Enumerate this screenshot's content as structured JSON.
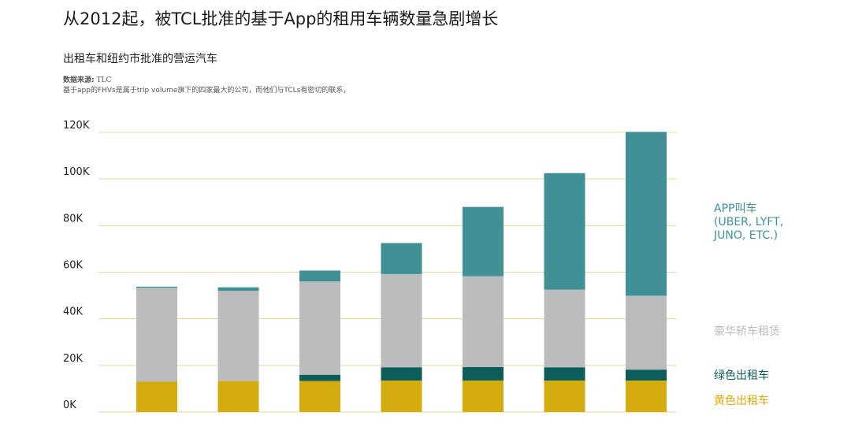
{
  "title": "从2012起，被TCL批准的基于App的租用车辆数量急剧增长",
  "subtitle": "出租车和纽约市批准的营运汽车",
  "source_label": "数据来源:",
  "source_value": "TLC",
  "note": "基于app的FHVs是属于trip volume旗下的四家最大的公司，而他们与TCLs有密切的联系，",
  "colors": {
    "yellow_taxi": "#d4ac0d",
    "green_taxi": "#0d5e5a",
    "luxury": "#bbbcbe",
    "app": "#3f9196",
    "grid": "#e2d99a"
  },
  "legend": {
    "app": [
      "APP叫车",
      "(UBER, LYFT,",
      "JUNO, ETC.)"
    ],
    "luxury": "豪华轿车租赁",
    "green": "绿色出租车",
    "yellow": "黄色出租车"
  },
  "chart_data": {
    "type": "bar",
    "stacked": true,
    "categories": [
      "",
      "",
      "",
      "",
      "",
      "",
      ""
    ],
    "y_ticks": [
      "0K",
      "20K",
      "40K",
      "60K",
      "80K",
      "100K",
      "120K"
    ],
    "ylim": [
      0,
      120000
    ],
    "series": [
      {
        "name": "黄色出租车",
        "key": "yellow_taxi",
        "values": [
          13000,
          13300,
          13300,
          13500,
          13500,
          13500,
          13500
        ]
      },
      {
        "name": "绿色出租车",
        "key": "green_taxi",
        "values": [
          0,
          0,
          2700,
          5700,
          5800,
          5700,
          4700
        ]
      },
      {
        "name": "豪华轿车租赁",
        "key": "luxury",
        "values": [
          40300,
          38700,
          40000,
          40000,
          39000,
          33300,
          31700
        ]
      },
      {
        "name": "APP叫车",
        "key": "app",
        "values": [
          500,
          1500,
          4700,
          13300,
          29700,
          50000,
          70300
        ]
      }
    ]
  }
}
